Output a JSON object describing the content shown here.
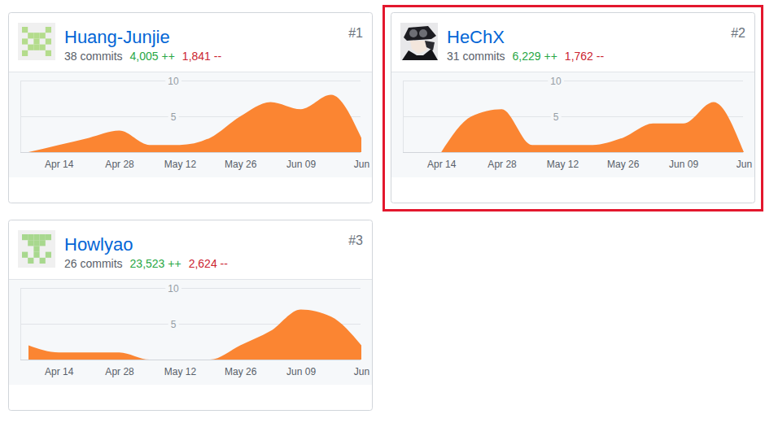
{
  "chart_data": [
    {
      "type": "area",
      "title": "Huang-Junjie",
      "annotations": [
        "#1",
        "38 commits",
        "4,005 ++",
        "1,841 --"
      ],
      "categories": [
        null,
        "Apr 14",
        null,
        "Apr 28",
        null,
        "May 12",
        null,
        "May 26",
        null,
        "Jun 09",
        null,
        "Jun"
      ],
      "values": [
        0,
        1,
        2,
        3,
        1,
        1,
        2,
        5,
        7,
        6,
        8,
        2
      ],
      "color": "#fb8532",
      "ylim": [
        0,
        10
      ],
      "yticks": [
        5,
        10
      ],
      "grid": true
    },
    {
      "type": "area",
      "title": "HeChX",
      "annotations": [
        "#2",
        "31 commits",
        "6,229 ++",
        "1,762 --"
      ],
      "categories": [
        null,
        "Apr 14",
        null,
        "Apr 28",
        null,
        "May 12",
        null,
        "May 26",
        null,
        "Jun 09",
        null,
        "Jun"
      ],
      "values": [
        null,
        0,
        5,
        6,
        1,
        1,
        1,
        2,
        4,
        4,
        7,
        0
      ],
      "color": "#fb8532",
      "ylim": [
        0,
        10
      ],
      "yticks": [
        5,
        10
      ],
      "grid": true
    },
    {
      "type": "area",
      "title": "Howlyao",
      "annotations": [
        "#3",
        "26 commits",
        "23,523 ++",
        "2,624 --"
      ],
      "categories": [
        null,
        "Apr 14",
        null,
        "Apr 28",
        null,
        "May 12",
        null,
        "May 26",
        null,
        "Jun 09",
        null,
        "Jun"
      ],
      "values": [
        2,
        1,
        1,
        1,
        0,
        0,
        0,
        2,
        4,
        7,
        6,
        2
      ],
      "color": "#fb8532",
      "ylim": [
        0,
        10
      ],
      "yticks": [
        5,
        10
      ],
      "grid": true
    }
  ]
}
